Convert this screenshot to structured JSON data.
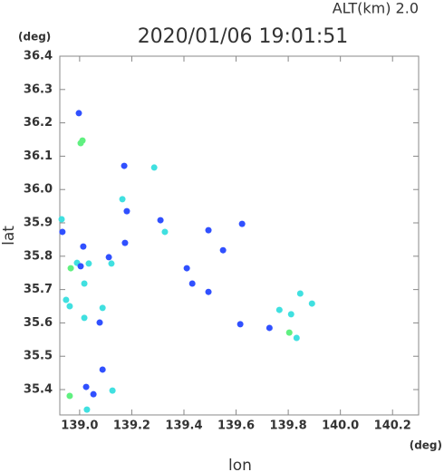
{
  "chart_data": {
    "type": "scatter",
    "title": "2020/01/06 19:01:51",
    "subtitle": "ALT(km) 2.0",
    "xlabel": "lon",
    "ylabel": "lat",
    "xunit": "(deg)",
    "yunit": "(deg)",
    "xlim": [
      138.924,
      140.3
    ],
    "ylim": [
      35.324,
      36.4
    ],
    "xticks": [
      {
        "value": 139,
        "label": "139.0"
      },
      139.2,
      139.4,
      139.6,
      139.8,
      {
        "value": 140,
        "label": "140.0"
      },
      140.2
    ],
    "yticks": [
      35.4,
      35.5,
      35.6,
      35.7,
      35.8,
      35.9,
      {
        "value": 36,
        "label": "36.0"
      },
      36.1,
      36.2,
      36.3,
      36.4
    ],
    "x": [
      138.997,
      139.004,
      139.011,
      138.931,
      138.934,
      139.014,
      138.99,
      138.966,
      139.004,
      139.035,
      139.112,
      139.122,
      139.018,
      138.948,
      138.962,
      139.018,
      139.077,
      139.088,
      139.164,
      139.181,
      139.174,
      139.171,
      139.286,
      139.31,
      139.327,
      139.494,
      139.623,
      139.55,
      139.411,
      139.432,
      139.494,
      139.616,
      139.766,
      139.728,
      139.846,
      139.891,
      139.811,
      139.804,
      139.832,
      139.088,
      139.126,
      139.025,
      139.053,
      138.962,
      139.028
    ],
    "y": [
      36.229,
      36.139,
      36.147,
      35.911,
      35.873,
      35.829,
      35.78,
      35.764,
      35.77,
      35.778,
      35.797,
      35.778,
      35.718,
      35.669,
      35.65,
      35.615,
      35.601,
      35.645,
      35.971,
      35.935,
      35.84,
      36.071,
      36.066,
      35.908,
      35.873,
      35.878,
      35.897,
      35.818,
      35.764,
      35.718,
      35.693,
      35.596,
      35.639,
      35.585,
      35.688,
      35.658,
      35.626,
      35.571,
      35.555,
      35.46,
      35.397,
      35.408,
      35.386,
      35.381,
      35.34
    ],
    "colors": [
      "#3050ff",
      "#60f080",
      "#60f080",
      "#40e0e0",
      "#3050ff",
      "#3050ff",
      "#40e0e0",
      "#60f080",
      "#3050ff",
      "#40e0e0",
      "#3050ff",
      "#40e0e0",
      "#40e0e0",
      "#40e0e0",
      "#40e0e0",
      "#40e0e0",
      "#3050ff",
      "#40e0e0",
      "#40e0e0",
      "#3050ff",
      "#3050ff",
      "#3050ff",
      "#40e0e0",
      "#3050ff",
      "#40e0e0",
      "#3050ff",
      "#3050ff",
      "#3050ff",
      "#3050ff",
      "#3050ff",
      "#3050ff",
      "#3050ff",
      "#40e0e0",
      "#3050ff",
      "#40e0e0",
      "#40e0e0",
      "#40e0e0",
      "#60f080",
      "#40e0e0",
      "#3050ff",
      "#40e0e0",
      "#3050ff",
      "#3050ff",
      "#60f080",
      "#40e0e0"
    ]
  }
}
